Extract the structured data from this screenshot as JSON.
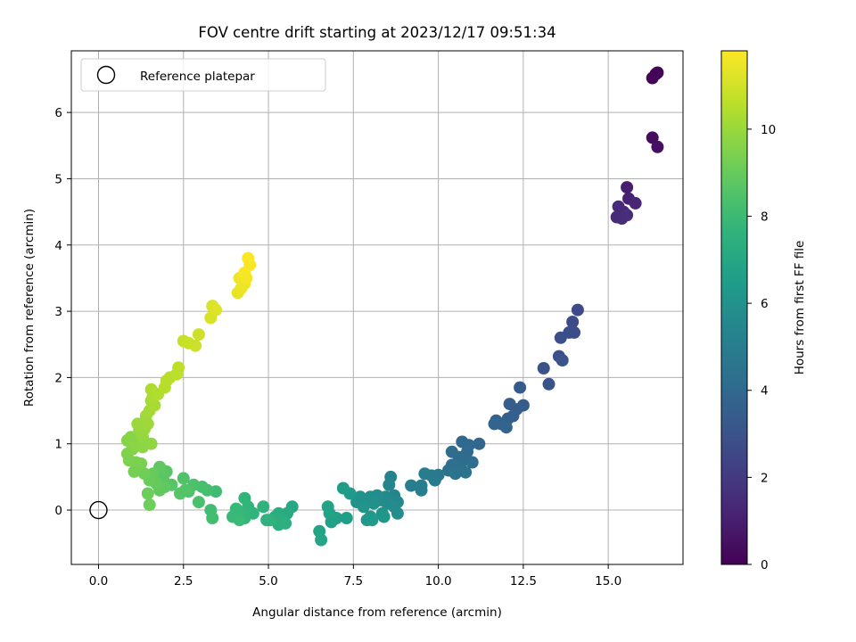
{
  "chart_data": {
    "type": "scatter",
    "title": "FOV centre drift starting at 2023/12/17 09:51:34",
    "xlabel": "Angular distance from reference (arcmin)",
    "ylabel": "Rotation from reference (arcmin)",
    "xlim": [
      -0.8,
      17.2
    ],
    "ylim": [
      -0.82,
      6.93
    ],
    "xticks": [
      0.0,
      2.5,
      5.0,
      7.5,
      10.0,
      12.5,
      15.0
    ],
    "xtick_labels": [
      "0.0",
      "2.5",
      "5.0",
      "7.5",
      "10.0",
      "12.5",
      "15.0"
    ],
    "yticks": [
      0,
      1,
      2,
      3,
      4,
      5,
      6
    ],
    "ytick_labels": [
      "0",
      "1",
      "2",
      "3",
      "4",
      "5",
      "6"
    ],
    "grid": true,
    "legend": {
      "position": "top-left",
      "entries": [
        "Reference platepar"
      ]
    },
    "reference_point": {
      "x": 0.0,
      "y": 0.0
    },
    "colorbar": {
      "label": "Hours from first FF file",
      "range": [
        0,
        11.8
      ],
      "ticks": [
        0,
        2,
        4,
        6,
        8,
        10
      ],
      "tick_labels": [
        "0",
        "2",
        "4",
        "6",
        "8",
        "10"
      ],
      "colormap": "viridis"
    },
    "points": [
      [
        16.4,
        6.58,
        0.0
      ],
      [
        16.3,
        6.52,
        0.1
      ],
      [
        16.45,
        6.6,
        0.15
      ],
      [
        16.3,
        5.62,
        0.4
      ],
      [
        16.45,
        5.48,
        0.5
      ],
      [
        15.55,
        4.87,
        1.0
      ],
      [
        15.6,
        4.7,
        1.1
      ],
      [
        15.8,
        4.63,
        1.2
      ],
      [
        15.3,
        4.58,
        1.3
      ],
      [
        15.45,
        4.5,
        1.35
      ],
      [
        15.25,
        4.42,
        1.4
      ],
      [
        15.4,
        4.4,
        1.45
      ],
      [
        15.55,
        4.45,
        1.5
      ],
      [
        14.1,
        3.02,
        2.6
      ],
      [
        13.95,
        2.84,
        2.7
      ],
      [
        14.0,
        2.68,
        2.75
      ],
      [
        13.85,
        2.68,
        2.8
      ],
      [
        13.6,
        2.6,
        2.85
      ],
      [
        13.55,
        2.32,
        2.9
      ],
      [
        13.65,
        2.26,
        2.95
      ],
      [
        13.1,
        2.14,
        3.0
      ],
      [
        13.25,
        1.9,
        3.05
      ],
      [
        12.4,
        1.85,
        3.3
      ],
      [
        12.5,
        1.58,
        3.4
      ],
      [
        12.3,
        1.52,
        3.45
      ],
      [
        12.1,
        1.6,
        3.5
      ],
      [
        12.2,
        1.42,
        3.55
      ],
      [
        12.05,
        1.38,
        3.6
      ],
      [
        11.7,
        1.35,
        3.65
      ],
      [
        11.85,
        1.3,
        3.7
      ],
      [
        12.0,
        1.25,
        3.75
      ],
      [
        11.65,
        1.3,
        3.8
      ],
      [
        11.2,
        1.0,
        3.9
      ],
      [
        10.9,
        0.98,
        3.95
      ],
      [
        10.7,
        1.03,
        4.0
      ],
      [
        10.85,
        0.88,
        4.05
      ],
      [
        10.6,
        0.8,
        4.1
      ],
      [
        10.4,
        0.88,
        4.15
      ],
      [
        10.75,
        0.75,
        4.2
      ],
      [
        11.0,
        0.72,
        4.25
      ],
      [
        10.55,
        0.68,
        4.3
      ],
      [
        10.4,
        0.68,
        4.35
      ],
      [
        10.3,
        0.6,
        4.4
      ],
      [
        10.65,
        0.6,
        4.45
      ],
      [
        10.8,
        0.57,
        4.5
      ],
      [
        10.5,
        0.55,
        4.55
      ],
      [
        10.0,
        0.53,
        4.7
      ],
      [
        9.8,
        0.52,
        4.8
      ],
      [
        9.9,
        0.45,
        4.85
      ],
      [
        9.6,
        0.55,
        4.9
      ],
      [
        9.5,
        0.37,
        5.0
      ],
      [
        9.2,
        0.37,
        5.05
      ],
      [
        9.5,
        0.3,
        5.1
      ],
      [
        8.6,
        0.5,
        5.3
      ],
      [
        8.55,
        0.38,
        5.35
      ],
      [
        8.7,
        0.22,
        5.4
      ],
      [
        8.6,
        0.18,
        5.45
      ],
      [
        8.8,
        0.12,
        5.5
      ],
      [
        8.45,
        0.2,
        5.55
      ],
      [
        8.3,
        0.15,
        5.6
      ],
      [
        8.5,
        0.1,
        5.65
      ],
      [
        8.7,
        0.05,
        5.7
      ],
      [
        8.8,
        -0.05,
        5.75
      ],
      [
        8.2,
        0.22,
        5.8
      ],
      [
        8.0,
        0.2,
        5.85
      ],
      [
        8.1,
        0.1,
        5.9
      ],
      [
        7.85,
        0.15,
        5.95
      ],
      [
        7.7,
        0.2,
        6.0
      ],
      [
        7.6,
        0.12,
        6.05
      ],
      [
        7.8,
        0.05,
        6.1
      ],
      [
        8.35,
        -0.05,
        6.15
      ],
      [
        8.4,
        -0.1,
        6.2
      ],
      [
        8.0,
        -0.1,
        6.25
      ],
      [
        7.9,
        -0.15,
        6.3
      ],
      [
        8.05,
        -0.15,
        6.35
      ],
      [
        7.4,
        0.25,
        6.4
      ],
      [
        7.2,
        0.33,
        6.45
      ],
      [
        7.3,
        -0.12,
        6.6
      ],
      [
        7.0,
        -0.12,
        6.65
      ],
      [
        6.85,
        -0.18,
        6.7
      ],
      [
        6.8,
        -0.05,
        6.75
      ],
      [
        6.75,
        0.05,
        6.8
      ],
      [
        6.5,
        -0.32,
        6.85
      ],
      [
        6.55,
        -0.45,
        6.9
      ],
      [
        5.7,
        0.05,
        7.1
      ],
      [
        5.55,
        -0.05,
        7.2
      ],
      [
        5.3,
        -0.05,
        7.25
      ],
      [
        5.4,
        -0.15,
        7.3
      ],
      [
        5.2,
        -0.1,
        7.35
      ],
      [
        5.3,
        -0.22,
        7.4
      ],
      [
        5.5,
        -0.2,
        7.45
      ],
      [
        5.05,
        -0.15,
        7.5
      ],
      [
        4.95,
        -0.15,
        7.55
      ],
      [
        4.85,
        0.05,
        7.6
      ],
      [
        4.55,
        -0.05,
        7.65
      ],
      [
        4.4,
        0.05,
        7.7
      ],
      [
        4.3,
        0.18,
        7.75
      ],
      [
        4.3,
        -0.12,
        7.8
      ],
      [
        4.2,
        -0.05,
        7.85
      ],
      [
        4.05,
        0.02,
        7.9
      ],
      [
        3.95,
        -0.1,
        7.95
      ],
      [
        4.15,
        -0.15,
        8.0
      ],
      [
        3.45,
        0.28,
        8.1
      ],
      [
        3.3,
        0.0,
        8.15
      ],
      [
        3.35,
        -0.12,
        8.2
      ],
      [
        3.2,
        0.3,
        8.25
      ],
      [
        3.05,
        0.35,
        8.3
      ],
      [
        2.95,
        0.12,
        8.35
      ],
      [
        2.8,
        0.38,
        8.4
      ],
      [
        2.65,
        0.28,
        8.45
      ],
      [
        2.5,
        0.48,
        8.5
      ],
      [
        2.55,
        0.3,
        8.55
      ],
      [
        2.4,
        0.25,
        8.6
      ],
      [
        2.15,
        0.38,
        8.65
      ],
      [
        2.0,
        0.58,
        8.7
      ],
      [
        1.9,
        0.48,
        8.75
      ],
      [
        1.8,
        0.65,
        8.8
      ],
      [
        1.95,
        0.35,
        8.85
      ],
      [
        1.8,
        0.3,
        8.9
      ],
      [
        1.7,
        0.4,
        8.95
      ],
      [
        1.6,
        0.55,
        9.0
      ],
      [
        1.5,
        0.45,
        9.05
      ],
      [
        1.45,
        0.25,
        9.1
      ],
      [
        1.5,
        0.08,
        9.15
      ],
      [
        1.35,
        0.55,
        9.2
      ],
      [
        1.15,
        0.62,
        9.25
      ],
      [
        1.05,
        0.58,
        9.3
      ],
      [
        1.25,
        0.7,
        9.35
      ],
      [
        1.1,
        0.72,
        9.4
      ],
      [
        0.9,
        0.75,
        9.45
      ],
      [
        0.85,
        0.85,
        9.5
      ],
      [
        1.0,
        0.92,
        9.55
      ],
      [
        0.85,
        1.05,
        9.6
      ],
      [
        0.95,
        1.1,
        9.65
      ],
      [
        1.1,
        0.98,
        9.7
      ],
      [
        1.3,
        0.95,
        9.75
      ],
      [
        1.55,
        1.0,
        9.8
      ],
      [
        1.3,
        1.1,
        9.85
      ],
      [
        1.2,
        1.2,
        9.9
      ],
      [
        1.35,
        1.22,
        9.95
      ],
      [
        1.15,
        1.3,
        10.0
      ],
      [
        1.45,
        1.3,
        10.05
      ],
      [
        1.4,
        1.42,
        10.1
      ],
      [
        1.5,
        1.5,
        10.15
      ],
      [
        1.55,
        1.65,
        10.2
      ],
      [
        1.65,
        1.58,
        10.25
      ],
      [
        1.6,
        1.72,
        10.3
      ],
      [
        1.55,
        1.82,
        10.35
      ],
      [
        1.75,
        1.75,
        10.4
      ],
      [
        1.95,
        1.85,
        10.45
      ],
      [
        2.0,
        1.95,
        10.5
      ],
      [
        2.1,
        2.0,
        10.55
      ],
      [
        2.3,
        2.05,
        10.6
      ],
      [
        2.35,
        2.15,
        10.65
      ],
      [
        2.5,
        2.55,
        10.8
      ],
      [
        2.65,
        2.52,
        10.85
      ],
      [
        2.85,
        2.48,
        10.9
      ],
      [
        2.95,
        2.65,
        10.95
      ],
      [
        3.3,
        2.9,
        11.1
      ],
      [
        3.35,
        3.08,
        11.15
      ],
      [
        3.45,
        3.02,
        11.2
      ],
      [
        4.1,
        3.28,
        11.4
      ],
      [
        4.2,
        3.35,
        11.45
      ],
      [
        4.3,
        3.42,
        11.5
      ],
      [
        4.15,
        3.5,
        11.55
      ],
      [
        4.35,
        3.5,
        11.6
      ],
      [
        4.3,
        3.58,
        11.65
      ],
      [
        4.45,
        3.7,
        11.7
      ],
      [
        4.4,
        3.8,
        11.75
      ]
    ]
  }
}
